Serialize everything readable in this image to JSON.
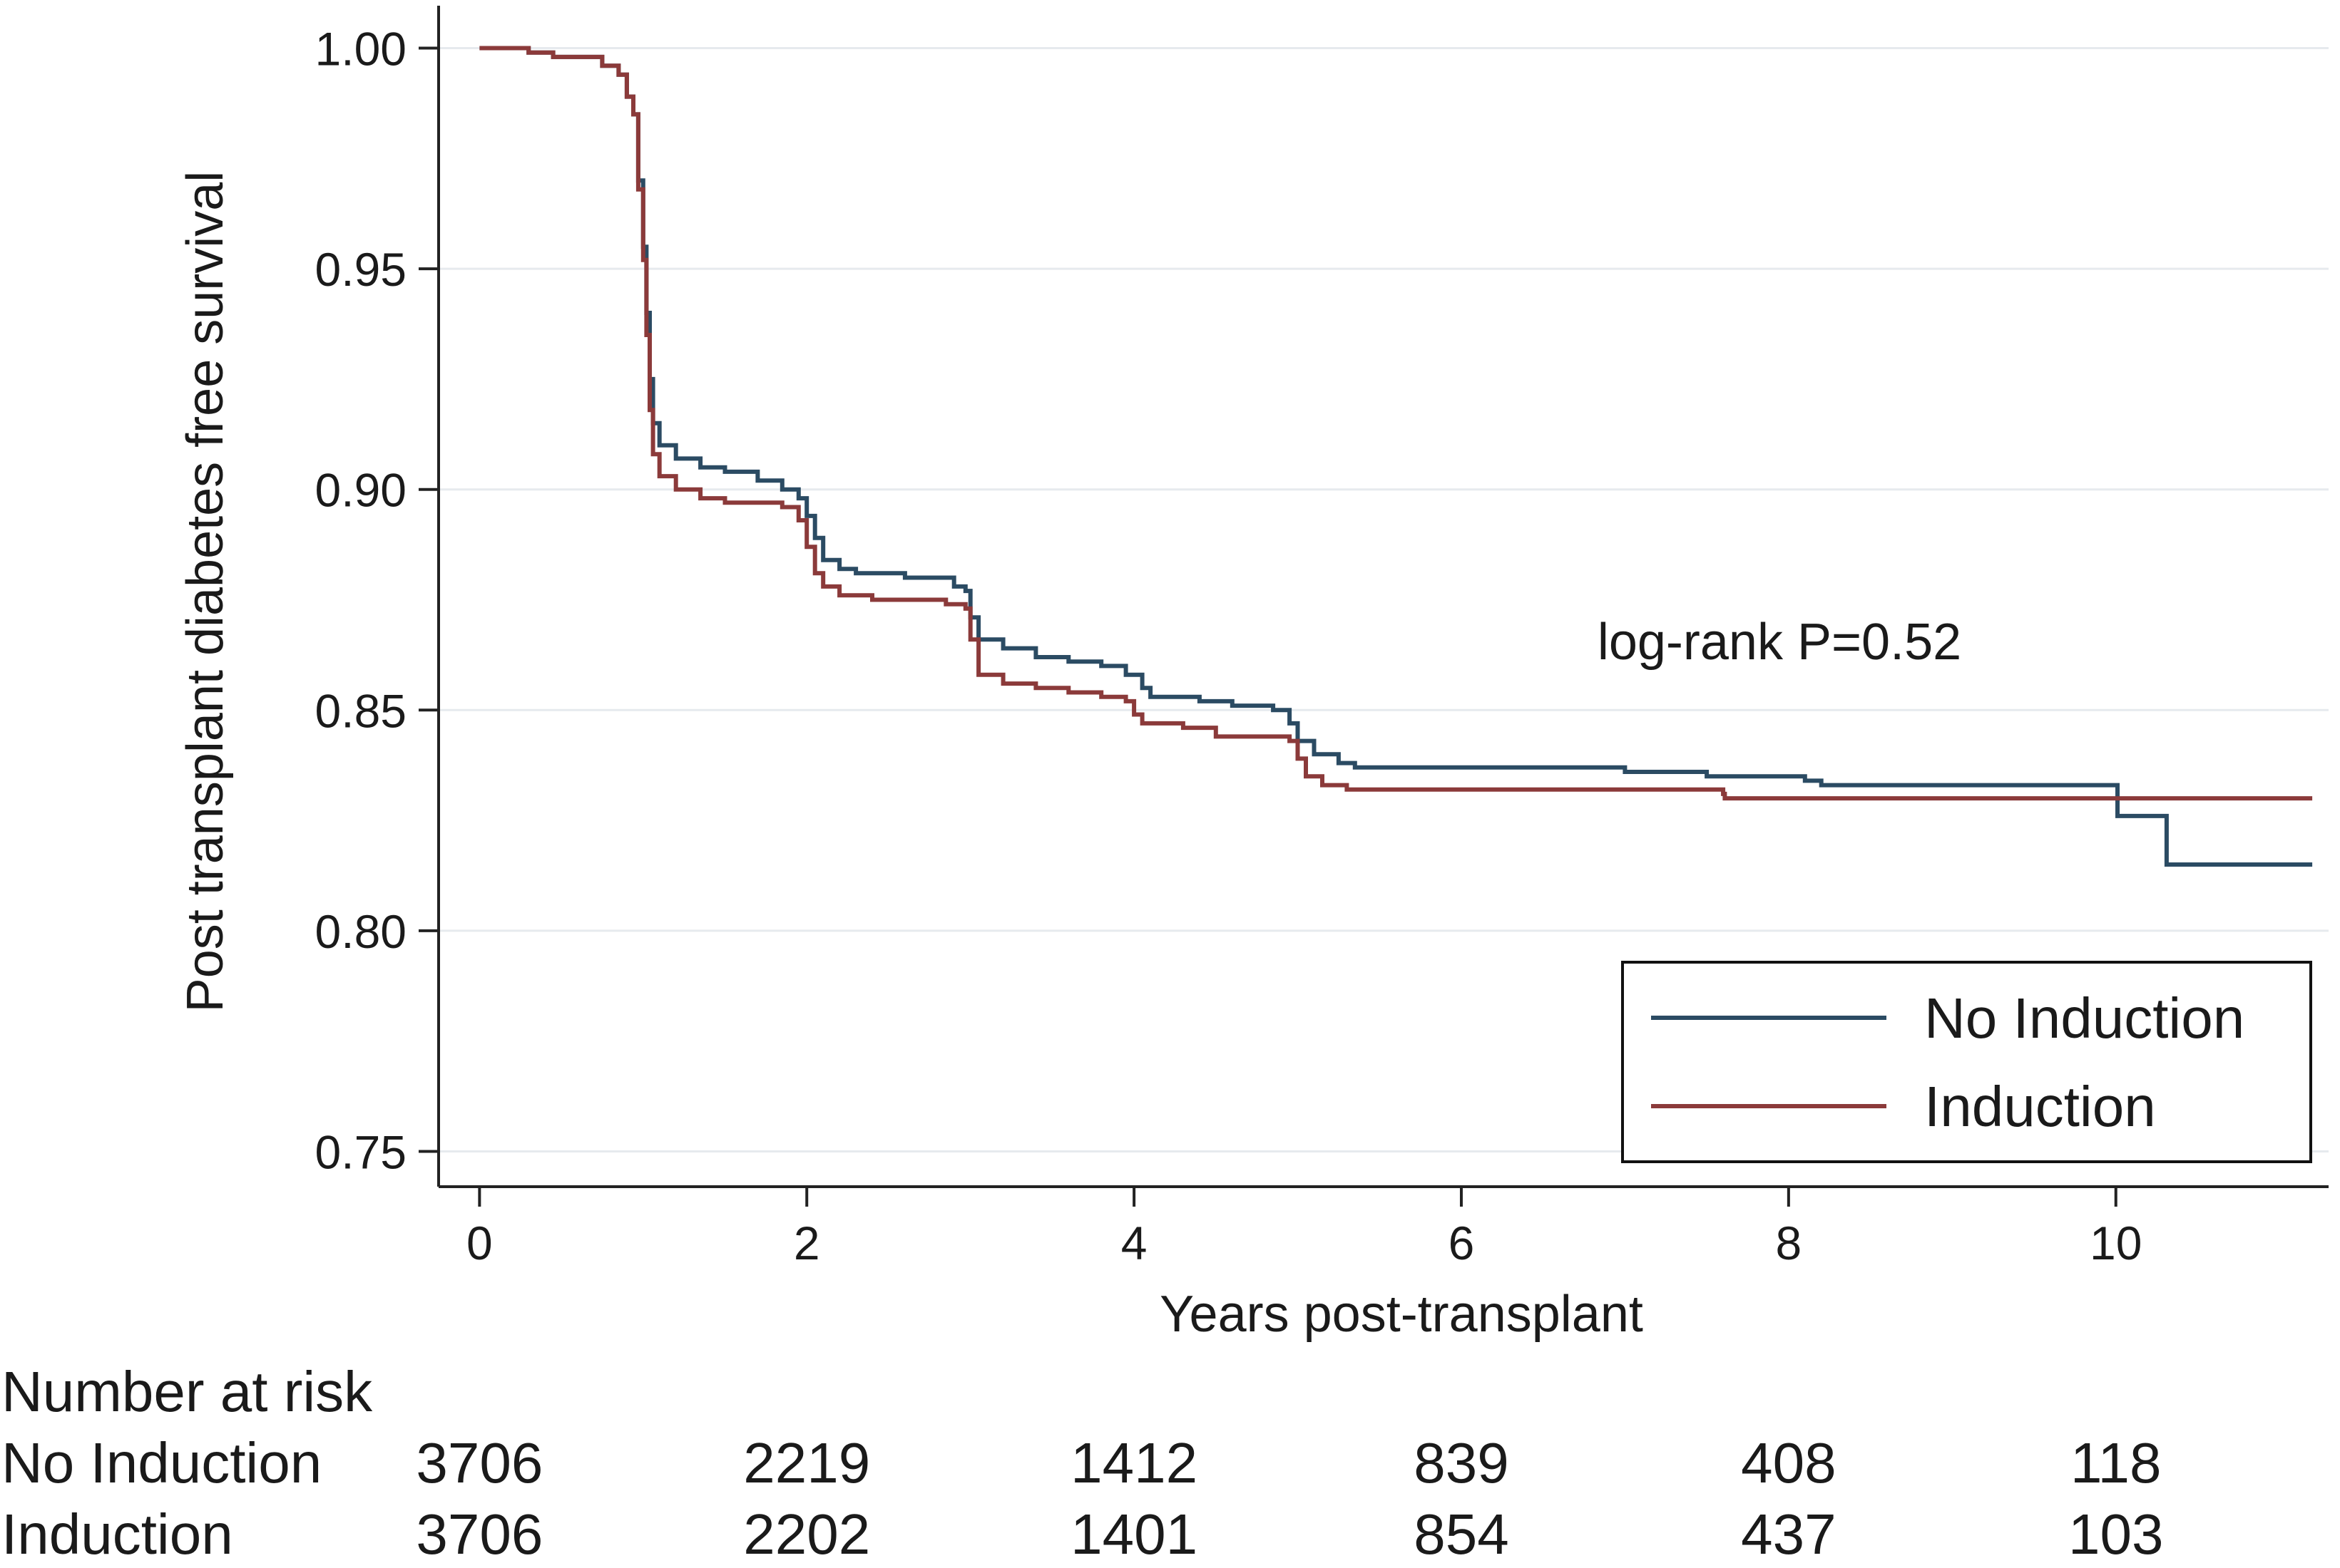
{
  "chart_data": {
    "type": "line",
    "subtype": "kaplan-meier step",
    "xlabel": "Years post-transplant",
    "ylabel": "Post transplant diabetes free survival",
    "xlim": [
      -0.25,
      11.3
    ],
    "ylim": [
      0.742,
      1.008
    ],
    "x_ticks": [
      0,
      2,
      4,
      6,
      8,
      10
    ],
    "y_ticks": [
      1.0,
      0.95,
      0.9,
      0.85,
      0.8,
      0.75
    ],
    "y_tick_labels": [
      "1.00",
      "0.95",
      "0.90",
      "0.85",
      "0.80",
      "0.75"
    ],
    "grid": true,
    "annotation": "log-rank P=0.52",
    "legend_position": "bottom-right",
    "series": [
      {
        "name": "No Induction",
        "color": "#2b4b63",
        "points": [
          [
            0,
            1.0
          ],
          [
            0.15,
            1.0
          ],
          [
            0.3,
            0.999
          ],
          [
            0.45,
            0.998
          ],
          [
            0.6,
            0.998
          ],
          [
            0.75,
            0.996
          ],
          [
            0.85,
            0.994
          ],
          [
            0.9,
            0.989
          ],
          [
            0.94,
            0.985
          ],
          [
            0.97,
            0.97
          ],
          [
            1.0,
            0.955
          ],
          [
            1.02,
            0.94
          ],
          [
            1.04,
            0.925
          ],
          [
            1.06,
            0.915
          ],
          [
            1.1,
            0.91
          ],
          [
            1.2,
            0.907
          ],
          [
            1.35,
            0.905
          ],
          [
            1.5,
            0.904
          ],
          [
            1.7,
            0.902
          ],
          [
            1.85,
            0.9
          ],
          [
            1.95,
            0.898
          ],
          [
            2.0,
            0.894
          ],
          [
            2.05,
            0.889
          ],
          [
            2.1,
            0.884
          ],
          [
            2.2,
            0.882
          ],
          [
            2.3,
            0.881
          ],
          [
            2.6,
            0.88
          ],
          [
            2.9,
            0.878
          ],
          [
            2.97,
            0.877
          ],
          [
            3.0,
            0.871
          ],
          [
            3.05,
            0.866
          ],
          [
            3.2,
            0.864
          ],
          [
            3.4,
            0.862
          ],
          [
            3.6,
            0.861
          ],
          [
            3.8,
            0.86
          ],
          [
            3.95,
            0.858
          ],
          [
            4.05,
            0.855
          ],
          [
            4.1,
            0.853
          ],
          [
            4.4,
            0.852
          ],
          [
            4.6,
            0.851
          ],
          [
            4.85,
            0.85
          ],
          [
            4.95,
            0.847
          ],
          [
            5.0,
            0.843
          ],
          [
            5.1,
            0.84
          ],
          [
            5.25,
            0.838
          ],
          [
            5.35,
            0.837
          ],
          [
            6.0,
            0.837
          ],
          [
            7.0,
            0.836
          ],
          [
            7.5,
            0.835
          ],
          [
            8.1,
            0.834
          ],
          [
            8.2,
            0.833
          ],
          [
            9.0,
            0.833
          ],
          [
            10.0,
            0.833
          ],
          [
            10.01,
            0.826
          ],
          [
            10.3,
            0.826
          ],
          [
            10.31,
            0.815
          ],
          [
            11.2,
            0.815
          ]
        ]
      },
      {
        "name": "Induction",
        "color": "#8b3a3a",
        "points": [
          [
            0,
            1.0
          ],
          [
            0.15,
            1.0
          ],
          [
            0.3,
            0.999
          ],
          [
            0.45,
            0.998
          ],
          [
            0.6,
            0.998
          ],
          [
            0.75,
            0.996
          ],
          [
            0.85,
            0.994
          ],
          [
            0.9,
            0.989
          ],
          [
            0.94,
            0.985
          ],
          [
            0.97,
            0.968
          ],
          [
            1.0,
            0.952
          ],
          [
            1.02,
            0.935
          ],
          [
            1.04,
            0.918
          ],
          [
            1.06,
            0.908
          ],
          [
            1.1,
            0.903
          ],
          [
            1.2,
            0.9
          ],
          [
            1.35,
            0.898
          ],
          [
            1.5,
            0.897
          ],
          [
            1.7,
            0.897
          ],
          [
            1.85,
            0.896
          ],
          [
            1.95,
            0.893
          ],
          [
            2.0,
            0.887
          ],
          [
            2.05,
            0.881
          ],
          [
            2.1,
            0.878
          ],
          [
            2.2,
            0.876
          ],
          [
            2.4,
            0.875
          ],
          [
            2.6,
            0.875
          ],
          [
            2.85,
            0.874
          ],
          [
            2.97,
            0.873
          ],
          [
            3.0,
            0.866
          ],
          [
            3.05,
            0.858
          ],
          [
            3.2,
            0.856
          ],
          [
            3.4,
            0.855
          ],
          [
            3.6,
            0.854
          ],
          [
            3.8,
            0.853
          ],
          [
            3.95,
            0.852
          ],
          [
            4.0,
            0.849
          ],
          [
            4.05,
            0.847
          ],
          [
            4.3,
            0.846
          ],
          [
            4.5,
            0.844
          ],
          [
            4.8,
            0.844
          ],
          [
            4.95,
            0.843
          ],
          [
            5.0,
            0.839
          ],
          [
            5.05,
            0.835
          ],
          [
            5.15,
            0.833
          ],
          [
            5.3,
            0.832
          ],
          [
            6.0,
            0.832
          ],
          [
            7.0,
            0.832
          ],
          [
            7.6,
            0.831
          ],
          [
            7.61,
            0.83
          ],
          [
            9.0,
            0.83
          ],
          [
            10.0,
            0.83
          ],
          [
            11.2,
            0.83
          ]
        ]
      }
    ]
  },
  "risk_table": {
    "title": "Number at risk",
    "rows": [
      {
        "label": "No Induction",
        "values": [
          "3706",
          "2219",
          "1412",
          "839",
          "408",
          "118"
        ]
      },
      {
        "label": "Induction",
        "values": [
          "3706",
          "2202",
          "1401",
          "854",
          "437",
          "103"
        ]
      }
    ]
  },
  "colors": {
    "axis": "#222222",
    "grid": "#e6eaee",
    "no_induction": "#2b4b63",
    "induction": "#8b3a3a"
  }
}
